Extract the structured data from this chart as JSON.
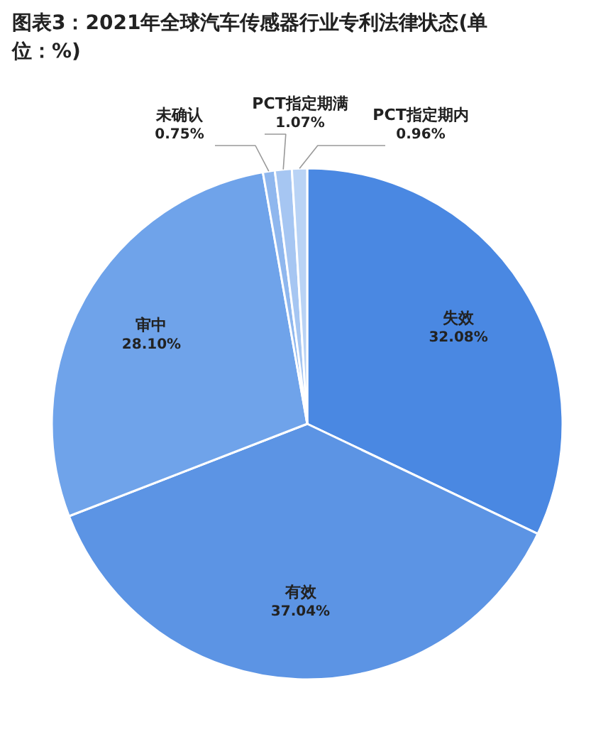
{
  "chart_data": {
    "type": "pie",
    "title": "图表3：2021年全球汽车传感器行业专利法律状态(单位：%)",
    "categories": [
      "失效",
      "有效",
      "审中",
      "未确认",
      "PCT指定期满",
      "PCT指定期内"
    ],
    "values": [
      32.08,
      37.04,
      28.1,
      0.75,
      1.07,
      0.96
    ],
    "value_labels": [
      "32.08%",
      "37.04%",
      "28.10%",
      "0.75%",
      "1.07%",
      "0.96%"
    ],
    "colors": [
      "#4a88e2",
      "#5c94e4",
      "#6fa3ea",
      "#8fb7ee",
      "#a6c6f2",
      "#b9d3f5"
    ],
    "legend": false
  }
}
